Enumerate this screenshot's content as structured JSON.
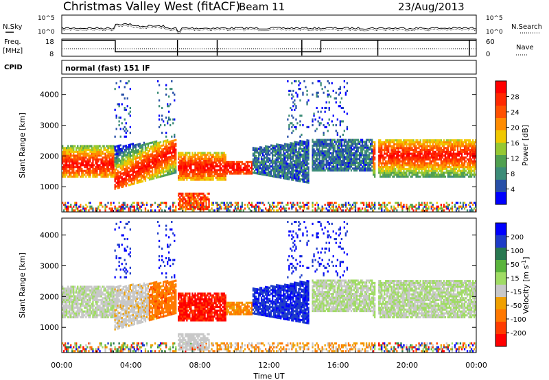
{
  "header": {
    "title": "Christmas Valley West (fitACF)",
    "beam": "Beam 11",
    "date": "23/Aug/2013"
  },
  "side_labels": {
    "nsky": "N.Sky",
    "freq_line1": "Freq.",
    "freq_line2": "[MHz]",
    "cpid": "CPID",
    "nsearch": "N.Search",
    "nave": "Nave"
  },
  "tick_labels": {
    "noise_left": [
      "10^5",
      "10^0"
    ],
    "noise_right": [
      "10^5",
      "10^0"
    ],
    "freq_left": [
      "18",
      "8"
    ],
    "freq_right": [
      "60",
      "0"
    ]
  },
  "cpid_text": "normal (fast) 151 IF",
  "colors": {
    "power": [
      "#0000ff",
      "#2850a8",
      "#3c8c78",
      "#50a050",
      "#96c832",
      "#f0c800",
      "#ff8c00",
      "#ff5000",
      "#ff2800",
      "#ff0000"
    ],
    "velocity": [
      "#0000ff",
      "#1e3cc8",
      "#287850",
      "#5ab43c",
      "#a0dc64",
      "#c8c8c8",
      "#f0a000",
      "#ff7800",
      "#ff3c00",
      "#ff0000"
    ]
  },
  "chart_data": [
    {
      "type": "line",
      "name": "noise",
      "xlabel": "",
      "ylabel": "",
      "xlim": [
        0,
        24
      ],
      "series": [
        {
          "name": "N.Sky"
        },
        {
          "name": "N.Search"
        }
      ]
    },
    {
      "type": "line",
      "name": "frequency",
      "xlabel": "",
      "ylabel": "Freq. [MHz]",
      "xlim": [
        0,
        24
      ],
      "ylim": [
        8,
        18
      ],
      "y2lim": [
        0,
        60
      ],
      "series": [
        {
          "name": "Freq.",
          "x": [
            0,
            3.1,
            3.1,
            14.3,
            14.3,
            15.0,
            15.0,
            24
          ],
          "values": [
            17.2,
            17.2,
            10.6,
            10.6,
            10.6,
            10.6,
            17.2,
            17.2
          ]
        },
        {
          "name": "Nave",
          "x": [
            0,
            24
          ],
          "values": [
            26,
            26
          ]
        }
      ]
    },
    {
      "type": "heatmap",
      "name": "power",
      "xlabel": "",
      "ylabel": "Slant Range [km]",
      "xlim": [
        0,
        24
      ],
      "ylim": [
        180,
        4550
      ],
      "y_ticks": [
        1000,
        2000,
        3000,
        4000
      ],
      "colorbar_label": "Power [dB]",
      "colorbar_ticks": [
        "28",
        "24",
        "20",
        "16",
        "12",
        "8",
        "4"
      ],
      "colorbar_range": [
        0,
        30
      ]
    },
    {
      "type": "heatmap",
      "name": "velocity",
      "xlabel": "Time UT",
      "ylabel": "Slant Range [km]",
      "xlim": [
        0,
        24
      ],
      "ylim": [
        180,
        4550
      ],
      "x_ticks": [
        "00:00",
        "04:00",
        "08:00",
        "12:00",
        "16:00",
        "20:00",
        "00:00"
      ],
      "y_ticks": [
        1000,
        2000,
        3000,
        4000
      ],
      "colorbar_label": "Velocity [m s-1]",
      "colorbar_ticks": [
        "200",
        "100",
        "50",
        "15",
        "-15",
        "-50",
        "-100",
        "-200"
      ]
    }
  ]
}
